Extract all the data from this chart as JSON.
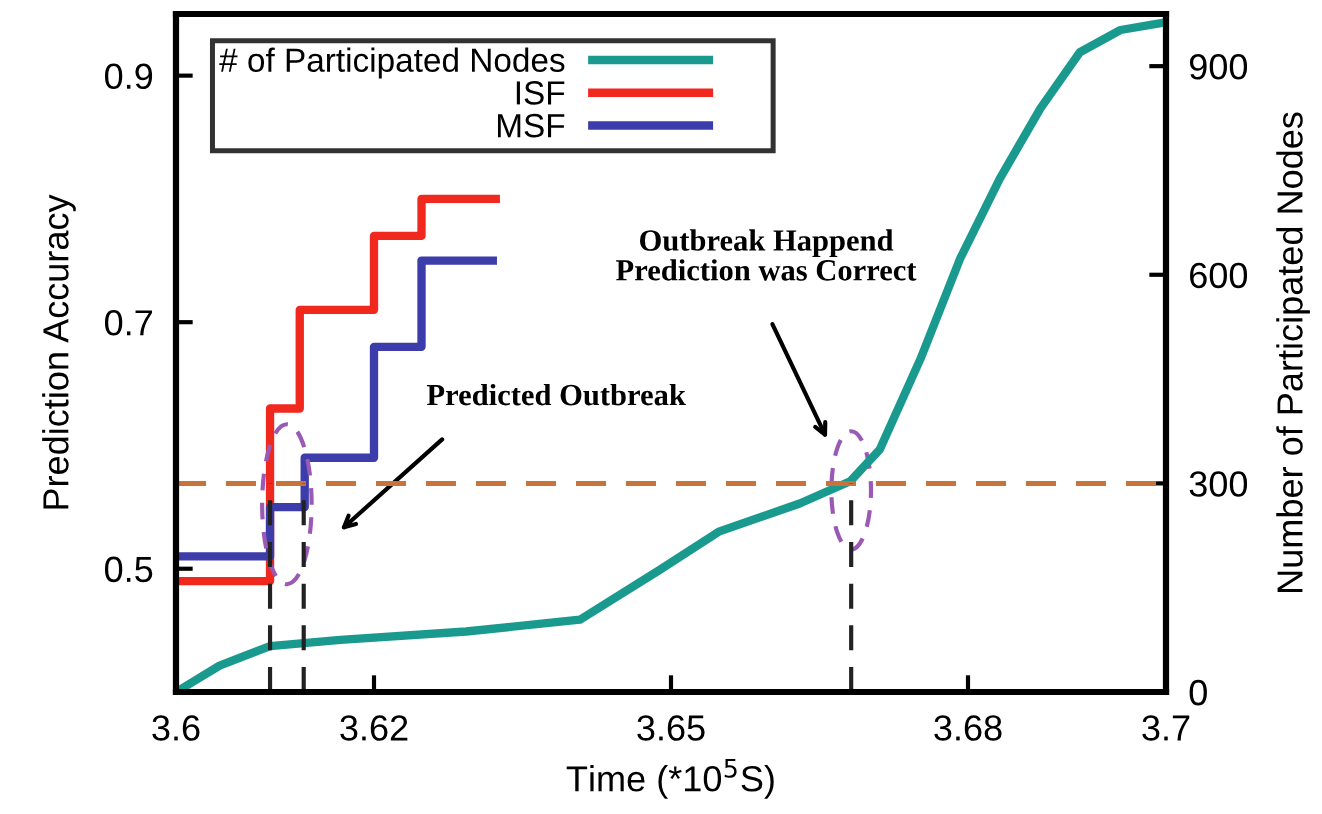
{
  "chart_data": {
    "type": "step",
    "xlabel": "Time (*10$^{5}$S)",
    "ylabel": "Prediction Accuracy",
    "y2label": "Number of Participated Nodes",
    "xlim": [
      3.6,
      3.7
    ],
    "xticks": [
      3.6,
      3.62,
      3.65,
      3.68,
      3.7
    ],
    "ylim": [
      0.4,
      0.95
    ],
    "yticks": [
      0.5,
      0.7,
      0.9
    ],
    "y2lim": [
      0,
      975
    ],
    "y2ticks": [
      0,
      300,
      600,
      900
    ],
    "legend": "top",
    "grid": false,
    "series": [
      {
        "name": "# of Participated Nodes",
        "type": "line",
        "axis": "y2",
        "color": "#1a9a8e",
        "x": [
          3.6,
          3.6044,
          3.6095,
          3.6166,
          3.6293,
          3.6408,
          3.6489,
          3.6549,
          3.663,
          3.6681,
          3.6711,
          3.6752,
          3.6792,
          3.6832,
          3.6873,
          3.6913,
          3.6954,
          3.7
        ],
        "values": [
          0,
          38,
          66,
          75,
          87,
          104,
          176,
          231,
          271,
          303,
          349,
          479,
          623,
          738,
          839,
          920,
          952,
          963
        ]
      },
      {
        "name": "ISF",
        "color": "#f0281e",
        "x": [
          3.6,
          3.6095,
          3.6125,
          3.62,
          3.6248,
          3.6323
        ],
        "values": [
          0.49,
          0.63,
          0.71,
          0.77,
          0.8,
          0.8
        ]
      },
      {
        "name": "MSF",
        "color": "#3c3caa",
        "x": [
          3.6,
          3.6095,
          3.613,
          3.62,
          3.6248,
          3.632
        ],
        "values": [
          0.51,
          0.55,
          0.59,
          0.68,
          0.75,
          0.75
        ]
      }
    ],
    "ref_lines": [
      {
        "axis": "y2",
        "value": 300,
        "color": "#c8733a",
        "line_style": "dashed"
      },
      {
        "axis": "x",
        "value": 3.6095,
        "color": "#222222",
        "line_style": "dashed"
      },
      {
        "axis": "x",
        "value": 3.6129,
        "color": "#222222",
        "line_style": "dashed"
      },
      {
        "axis": "x",
        "value": 3.6682,
        "color": "#222222",
        "line_style": "dashed"
      }
    ],
    "annotations": [
      "Predicted Outbreak",
      "Outbreak Happend\nPrediction was Correct"
    ]
  }
}
